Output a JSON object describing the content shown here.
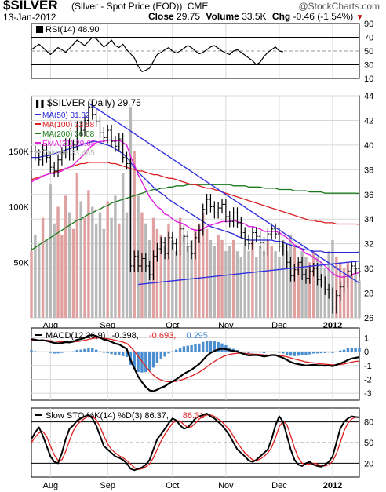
{
  "header": {
    "symbol": "$SILVER",
    "name": "(Silver - Spot Price (EOD))",
    "exchange": "CME",
    "watermark": "@StockCharts.com",
    "date": "13-Jan-2012",
    "close_label": "Close",
    "close_value": "29.75",
    "volume_label": "Volume",
    "volume_value": "33.5K",
    "chg_label": "Chg",
    "chg_value": "-0.46 (-1.54%)",
    "chg_arrow": "▼"
  },
  "colors": {
    "price_bar": "#000000",
    "ma50": "#2a2ad8",
    "ma100": "#d82020",
    "ma200": "#1a7a1a",
    "ema21": "#e020e0",
    "trendline": "#3030e0",
    "volume_up": "#e0a0a0",
    "volume_down": "#b8b8b8",
    "macd_hist": "#4a8ed0",
    "macd_line": "#000000",
    "signal_line": "#e02020",
    "sto_k": "#000000",
    "sto_d": "#e02020",
    "grid": "#d8d8d8"
  },
  "chart_data": [
    {
      "type": "line",
      "panel": "rsi",
      "legend": "RSI(14) 48.90",
      "y_ticks": [
        "90",
        "70",
        "50",
        "30",
        "10"
      ],
      "ylim": [
        10,
        90
      ],
      "reference_lines": [
        70,
        50,
        30
      ],
      "series": [
        {
          "name": "RSI(14)",
          "values": [
            52,
            56,
            60,
            55,
            50,
            45,
            50,
            55,
            52,
            48,
            54,
            60,
            66,
            62,
            58,
            64,
            70,
            68,
            62,
            56,
            60,
            66,
            58,
            55,
            60,
            52,
            46,
            40,
            28,
            20,
            22,
            25,
            35,
            45,
            48,
            52,
            55,
            50,
            47,
            50,
            54,
            58,
            55,
            50,
            46,
            48,
            52,
            56,
            58,
            54,
            50,
            47,
            45,
            50,
            52,
            48,
            44,
            40,
            36,
            30,
            34,
            42,
            48,
            52,
            56,
            50,
            48.9
          ]
        }
      ]
    },
    {
      "type": "line",
      "panel": "price",
      "legend_title": "$SILVER (Daily) 29.75",
      "legend": [
        {
          "label": "MA(50) 31.32",
          "color": "#2a2ad8"
        },
        {
          "label": "MA(100) 33.58",
          "color": "#d82020"
        },
        {
          "label": "MA(200) 36.08",
          "color": "#1a7a1a"
        },
        {
          "label": "EMA(21) 29.65",
          "color": "#e020e0"
        },
        {
          "label": "Volume 33,465",
          "color": "#b8b8b8"
        }
      ],
      "y_ticks": [
        "44",
        "42",
        "40",
        "38",
        "36",
        "34",
        "32",
        "30",
        "28",
        "26"
      ],
      "ylim": [
        26,
        44
      ],
      "volume_ticks": [
        "150K",
        "100K",
        "50K"
      ],
      "volume_ylim": [
        0,
        200000
      ],
      "x_tick_labels": [
        "Aug",
        "Sep",
        "Oct",
        "Nov",
        "Dec",
        "2012"
      ],
      "x_tick_index": [
        5,
        20,
        37,
        51,
        65,
        79
      ],
      "close": [
        39.5,
        39.2,
        38.8,
        39.6,
        39.0,
        38.2,
        37.9,
        38.8,
        39.4,
        40.1,
        39.2,
        40.0,
        41.5,
        41.2,
        42.0,
        43.1,
        42.5,
        41.9,
        41.0,
        40.6,
        41.2,
        40.3,
        39.9,
        40.5,
        39.0,
        38.5,
        30.2,
        31.0,
        30.2,
        30.8,
        30.2,
        29.5,
        31.0,
        31.6,
        32.1,
        31.2,
        32.5,
        32.0,
        31.5,
        33.2,
        32.6,
        31.8,
        31.2,
        32.5,
        33.1,
        34.8,
        35.6,
        35.0,
        34.5,
        34.9,
        35.2,
        34.2,
        33.8,
        34.5,
        33.7,
        32.9,
        32.3,
        32.0,
        32.9,
        32.6,
        32.1,
        31.5,
        32.8,
        33.2,
        32.8,
        31.8,
        31.5,
        30.5,
        29.4,
        29.9,
        30.5,
        29.5,
        29.2,
        29.8,
        30.0,
        29.1,
        28.9,
        28.3,
        28.0,
        26.8,
        27.8,
        28.5,
        28.9,
        29.8,
        30.2,
        30.0,
        29.75
      ],
      "ma50": [
        39.0,
        39.0,
        39.0,
        39.1,
        39.1,
        39.2,
        39.3,
        39.4,
        39.5,
        39.6,
        39.7,
        39.8,
        39.9,
        40.0,
        40.1,
        40.2,
        40.3,
        40.3,
        40.2,
        40.1,
        40.0,
        39.9,
        39.7,
        39.5,
        39.3,
        39.0,
        38.6,
        38.2,
        37.8,
        37.5,
        37.2,
        36.9,
        36.6,
        36.3,
        36.1,
        35.9,
        35.6,
        35.4,
        35.2,
        35.0,
        34.8,
        34.6,
        34.4,
        34.2,
        34.0,
        33.8,
        33.6,
        33.4,
        33.3,
        33.2,
        33.1,
        33.0,
        32.9,
        32.8,
        32.6,
        32.5,
        32.4,
        32.3,
        32.3,
        32.3,
        32.3,
        32.3,
        32.3,
        32.3,
        32.2,
        32.2,
        32.1,
        32.0,
        31.9,
        31.8,
        31.7,
        31.6,
        31.5,
        31.5,
        31.4,
        31.4,
        31.4,
        31.3,
        31.3,
        31.3,
        31.3,
        31.3,
        31.3,
        31.3,
        31.3,
        31.3,
        31.32
      ],
      "ma100": [
        37.2,
        37.3,
        37.4,
        37.5,
        37.6,
        37.7,
        37.8,
        37.9,
        38.0,
        38.1,
        38.2,
        38.3,
        38.4,
        38.5,
        38.5,
        38.6,
        38.6,
        38.6,
        38.6,
        38.6,
        38.6,
        38.5,
        38.5,
        38.4,
        38.3,
        38.2,
        38.1,
        38.0,
        37.9,
        37.9,
        37.8,
        37.7,
        37.6,
        37.6,
        37.5,
        37.4,
        37.3,
        37.3,
        37.2,
        37.1,
        37.0,
        36.9,
        36.8,
        36.8,
        36.7,
        36.6,
        36.5,
        36.5,
        36.4,
        36.3,
        36.2,
        36.1,
        36.0,
        35.9,
        35.8,
        35.7,
        35.6,
        35.5,
        35.4,
        35.3,
        35.2,
        35.1,
        35.0,
        34.9,
        34.8,
        34.7,
        34.6,
        34.5,
        34.4,
        34.3,
        34.2,
        34.1,
        34.0,
        33.9,
        33.9,
        33.8,
        33.8,
        33.7,
        33.7,
        33.7,
        33.6,
        33.6,
        33.6,
        33.6,
        33.6,
        33.6,
        33.58
      ],
      "ma200": [
        31.5,
        31.7,
        31.9,
        32.1,
        32.3,
        32.5,
        32.7,
        32.9,
        33.1,
        33.3,
        33.5,
        33.7,
        33.9,
        34.0,
        34.2,
        34.4,
        34.5,
        34.7,
        34.8,
        35.0,
        35.1,
        35.3,
        35.4,
        35.5,
        35.6,
        35.7,
        35.8,
        35.9,
        36.0,
        36.1,
        36.2,
        36.3,
        36.4,
        36.4,
        36.5,
        36.5,
        36.6,
        36.6,
        36.7,
        36.7,
        36.7,
        36.8,
        36.8,
        36.8,
        36.8,
        36.8,
        36.8,
        36.8,
        36.8,
        36.8,
        36.8,
        36.8,
        36.8,
        36.7,
        36.7,
        36.7,
        36.7,
        36.6,
        36.6,
        36.6,
        36.6,
        36.5,
        36.5,
        36.5,
        36.5,
        36.4,
        36.4,
        36.4,
        36.4,
        36.3,
        36.3,
        36.3,
        36.3,
        36.2,
        36.2,
        36.2,
        36.2,
        36.1,
        36.1,
        36.1,
        36.1,
        36.1,
        36.1,
        36.1,
        36.1,
        36.1,
        36.08
      ],
      "ema21": [
        37.0,
        37.2,
        37.3,
        37.5,
        37.6,
        37.7,
        37.7,
        37.8,
        37.9,
        38.1,
        38.2,
        38.4,
        38.7,
        39.0,
        39.3,
        39.7,
        40.0,
        40.2,
        40.3,
        40.3,
        40.4,
        40.4,
        40.3,
        40.4,
        40.2,
        40.0,
        39.1,
        38.4,
        37.6,
        37.0,
        36.4,
        35.8,
        35.4,
        35.0,
        34.8,
        34.4,
        34.3,
        34.0,
        33.8,
        33.7,
        33.6,
        33.4,
        33.2,
        33.1,
        33.1,
        33.2,
        33.4,
        33.5,
        33.6,
        33.7,
        33.8,
        33.8,
        33.8,
        33.9,
        33.8,
        33.7,
        33.6,
        33.4,
        33.4,
        33.3,
        33.2,
        33.0,
        33.0,
        33.0,
        33.0,
        32.9,
        32.7,
        32.5,
        32.2,
        31.9,
        31.8,
        31.5,
        31.2,
        31.1,
        30.9,
        30.7,
        30.5,
        30.2,
        29.9,
        29.6,
        29.4,
        29.3,
        29.3,
        29.4,
        29.5,
        29.6,
        29.65
      ],
      "volume": [
        60000,
        75000,
        65000,
        90000,
        70000,
        120000,
        85000,
        100000,
        75000,
        110000,
        95000,
        80000,
        130000,
        105000,
        90000,
        115000,
        100000,
        85000,
        95000,
        80000,
        105000,
        90000,
        110000,
        85000,
        130000,
        95000,
        190000,
        150000,
        110000,
        95000,
        85000,
        70000,
        90000,
        80000,
        75000,
        65000,
        85000,
        70000,
        60000,
        90000,
        75000,
        65000,
        70000,
        80000,
        85000,
        95000,
        80000,
        70000,
        65000,
        75000,
        70000,
        60000,
        65000,
        70000,
        60000,
        55000,
        65000,
        60000,
        70000,
        55000,
        65000,
        60000,
        70000,
        65000,
        60000,
        55000,
        70000,
        60000,
        75000,
        65000,
        50000,
        60000,
        55000,
        50000,
        60000,
        55000,
        50000,
        45000,
        60000,
        70000,
        55000,
        50000,
        45000,
        50000,
        40000,
        45000,
        33465
      ],
      "trendlines": [
        {
          "from": [
            15,
            43.4
          ],
          "to": [
            86,
            28.8
          ]
        },
        {
          "from": [
            28,
            28.7
          ],
          "to": [
            86,
            30.6
          ]
        }
      ]
    },
    {
      "type": "area",
      "panel": "macd",
      "legend": [
        {
          "label": "MACD(12,26,9)",
          "color": "#000000"
        },
        {
          "label": "-0.398,",
          "color": "#000000"
        },
        {
          "label": "-0.693,",
          "color": "#e02020"
        },
        {
          "label": "0.295",
          "color": "#4a8ed0"
        }
      ],
      "y_ticks": [
        "1",
        "0",
        "-1",
        "-2",
        "-3"
      ],
      "ylim": [
        -3.5,
        1.7
      ],
      "series": [
        {
          "name": "MACD(12,26,9)",
          "values": [
            0.9,
            0.85,
            0.8,
            0.82,
            0.78,
            0.7,
            0.62,
            0.6,
            0.62,
            0.68,
            0.66,
            0.72,
            0.85,
            0.9,
            1.0,
            1.15,
            1.18,
            1.12,
            1.0,
            0.88,
            0.82,
            0.7,
            0.58,
            0.52,
            0.35,
            0.2,
            -0.6,
            -1.2,
            -1.8,
            -2.2,
            -2.55,
            -2.8,
            -2.85,
            -2.75,
            -2.6,
            -2.5,
            -2.3,
            -2.15,
            -2.0,
            -1.8,
            -1.6,
            -1.45,
            -1.3,
            -1.1,
            -0.9,
            -0.6,
            -0.3,
            -0.1,
            0.05,
            0.15,
            0.2,
            0.18,
            0.1,
            0.05,
            0.0,
            -0.1,
            -0.2,
            -0.28,
            -0.25,
            -0.25,
            -0.28,
            -0.35,
            -0.3,
            -0.25,
            -0.25,
            -0.35,
            -0.45,
            -0.6,
            -0.75,
            -0.85,
            -0.9,
            -0.95,
            -1.0,
            -0.98,
            -0.95,
            -0.98,
            -1.0,
            -1.02,
            -1.0,
            -1.05,
            -0.95,
            -0.85,
            -0.75,
            -0.6,
            -0.5,
            -0.45,
            -0.398
          ]
        },
        {
          "name": "Signal",
          "values": [
            0.8,
            0.82,
            0.82,
            0.82,
            0.81,
            0.79,
            0.76,
            0.73,
            0.71,
            0.7,
            0.69,
            0.7,
            0.73,
            0.76,
            0.81,
            0.88,
            0.94,
            0.98,
            0.98,
            0.96,
            0.93,
            0.88,
            0.82,
            0.76,
            0.68,
            0.59,
            0.35,
            0.04,
            -0.33,
            -0.7,
            -1.07,
            -1.42,
            -1.7,
            -1.91,
            -2.05,
            -2.14,
            -2.17,
            -2.17,
            -2.14,
            -2.07,
            -1.98,
            -1.87,
            -1.76,
            -1.63,
            -1.48,
            -1.3,
            -1.1,
            -0.9,
            -0.71,
            -0.54,
            -0.39,
            -0.28,
            -0.2,
            -0.15,
            -0.12,
            -0.11,
            -0.13,
            -0.16,
            -0.18,
            -0.19,
            -0.21,
            -0.24,
            -0.25,
            -0.25,
            -0.25,
            -0.27,
            -0.31,
            -0.37,
            -0.45,
            -0.53,
            -0.6,
            -0.67,
            -0.74,
            -0.78,
            -0.81,
            -0.85,
            -0.88,
            -0.91,
            -0.93,
            -0.95,
            -0.95,
            -0.93,
            -0.89,
            -0.83,
            -0.76,
            -0.7,
            -0.693
          ]
        }
      ]
    },
    {
      "type": "line",
      "panel": "sto",
      "legend": [
        {
          "label": "Slow STO %K(14) %D(3) 86.37,",
          "color": "#000000"
        },
        {
          "label": "86.31",
          "color": "#e02020"
        }
      ],
      "y_ticks": [
        "80",
        "50",
        "20"
      ],
      "ylim": [
        0,
        100
      ],
      "reference_lines": [
        80,
        50,
        20
      ],
      "series": [
        {
          "name": "%K",
          "values": [
            55,
            65,
            72,
            60,
            45,
            30,
            22,
            20,
            35,
            55,
            70,
            75,
            82,
            85,
            88,
            90,
            85,
            75,
            60,
            45,
            40,
            35,
            30,
            28,
            25,
            20,
            12,
            10,
            12,
            14,
            18,
            25,
            40,
            55,
            62,
            70,
            78,
            85,
            82,
            75,
            70,
            72,
            78,
            85,
            88,
            90,
            92,
            88,
            85,
            80,
            75,
            68,
            60,
            50,
            40,
            35,
            30,
            24,
            22,
            25,
            30,
            35,
            40,
            55,
            75,
            88,
            80,
            60,
            40,
            25,
            18,
            16,
            20,
            22,
            18,
            16,
            15,
            18,
            22,
            30,
            50,
            70,
            80,
            85,
            88,
            87,
            86.37
          ]
        },
        {
          "name": "%D",
          "values": [
            50,
            58,
            64,
            66,
            59,
            45,
            32,
            24,
            25,
            37,
            53,
            67,
            76,
            81,
            85,
            88,
            88,
            83,
            73,
            60,
            48,
            40,
            35,
            31,
            28,
            24,
            19,
            14,
            11,
            12,
            15,
            19,
            28,
            40,
            52,
            62,
            70,
            78,
            82,
            81,
            76,
            72,
            73,
            78,
            84,
            88,
            90,
            90,
            88,
            84,
            80,
            74,
            68,
            59,
            50,
            42,
            35,
            30,
            25,
            24,
            26,
            30,
            35,
            43,
            57,
            73,
            81,
            76,
            60,
            42,
            28,
            20,
            18,
            19,
            20,
            19,
            16,
            16,
            18,
            23,
            34,
            50,
            67,
            78,
            84,
            87,
            86.31
          ]
        }
      ],
      "x_tick_labels": [
        "Aug",
        "Sep",
        "Oct",
        "Nov",
        "Dec",
        "2012"
      ]
    }
  ]
}
